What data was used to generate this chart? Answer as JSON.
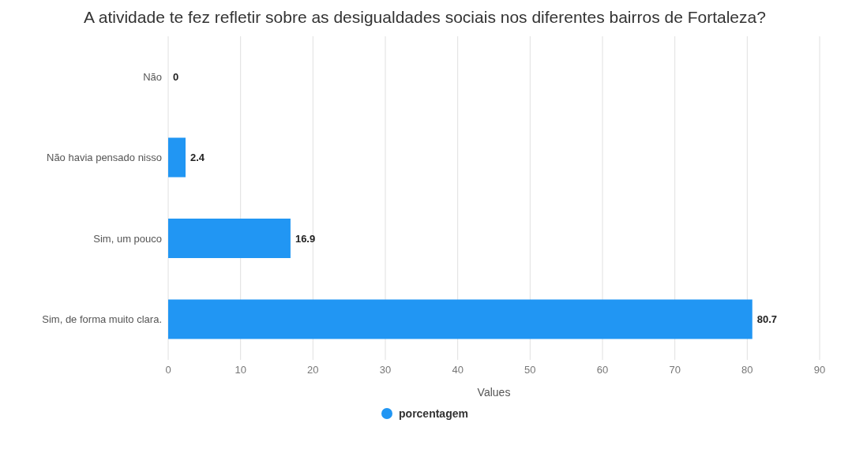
{
  "chart_data": {
    "type": "bar",
    "orientation": "horizontal",
    "title": "A atividade te fez refletir sobre as desigualdades sociais nos diferentes bairros de Fortaleza?",
    "categories": [
      "Não",
      "Não havia pensado nisso",
      "Sim, um pouco",
      "Sim, de forma muito clara."
    ],
    "series": [
      {
        "name": "porcentagem",
        "color": "#2196f3",
        "values": [
          0,
          2.4,
          16.9,
          80.7
        ]
      }
    ],
    "xlabel": "Values",
    "xlim": [
      0,
      90
    ],
    "xticks": [
      0,
      10,
      20,
      30,
      40,
      50,
      60,
      70,
      80,
      90
    ],
    "grid": "x",
    "legend": "bottom",
    "data_labels": true
  }
}
